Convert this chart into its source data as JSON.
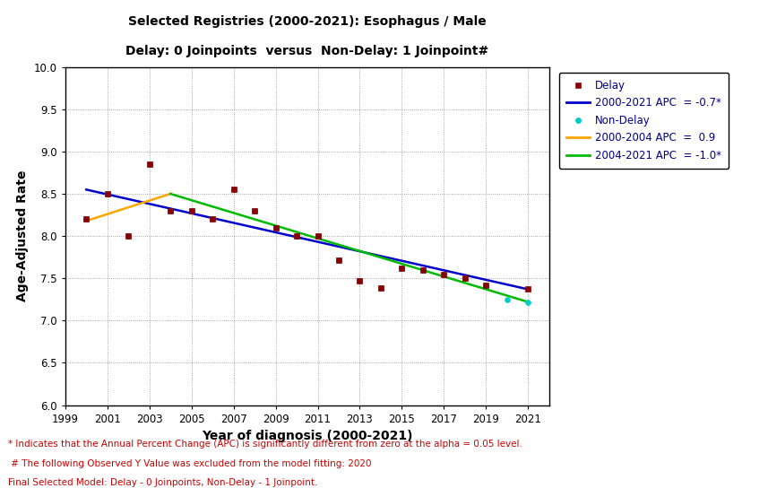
{
  "title_line1": "Selected Registries (2000-2021): Esophagus / Male",
  "title_line2": "Delay: 0 Joinpoints  versus  Non-Delay: 1 Joinpoint#",
  "xlabel": "Year of diagnosis (2000-2021)",
  "ylabel": "Age-Adjusted Rate",
  "xlim": [
    1999,
    2022
  ],
  "ylim": [
    6.0,
    10.0
  ],
  "xticks": [
    1999,
    2001,
    2003,
    2005,
    2007,
    2009,
    2011,
    2013,
    2015,
    2017,
    2019,
    2021
  ],
  "yticks": [
    6.0,
    6.5,
    7.0,
    7.5,
    8.0,
    8.5,
    9.0,
    9.5,
    10.0
  ],
  "delay_points": {
    "x": [
      2000,
      2001,
      2002,
      2003,
      2004,
      2005,
      2006,
      2007,
      2008,
      2009,
      2010,
      2011,
      2012,
      2013,
      2014,
      2015,
      2016,
      2017,
      2018,
      2019,
      2021
    ],
    "y": [
      8.2,
      8.5,
      8.0,
      8.85,
      8.3,
      8.3,
      8.2,
      8.55,
      8.3,
      8.1,
      8.0,
      8.0,
      7.72,
      7.47,
      7.39,
      7.62,
      7.6,
      7.55,
      7.5,
      7.42,
      7.37
    ]
  },
  "nondelay_points": {
    "x": [
      2000,
      2001,
      2002,
      2003,
      2004,
      2005,
      2006,
      2007,
      2008,
      2009,
      2010,
      2011,
      2012,
      2013,
      2014,
      2015,
      2016,
      2017,
      2018,
      2019,
      2020,
      2021
    ],
    "y": [
      8.2,
      8.5,
      8.0,
      8.85,
      8.3,
      8.3,
      8.2,
      8.55,
      8.3,
      8.1,
      8.0,
      8.0,
      7.72,
      7.47,
      7.39,
      7.62,
      7.6,
      7.55,
      7.5,
      7.42,
      7.25,
      7.22
    ]
  },
  "delay_line": {
    "x": [
      2000,
      2021
    ],
    "y": [
      8.55,
      7.37
    ],
    "color": "#0000CC",
    "label": "2000-2021 APC  = -0.7*"
  },
  "nondelay_line1": {
    "x": [
      2000,
      2004
    ],
    "y": [
      8.18,
      8.5
    ],
    "color": "#FFA500",
    "label": "2000-2004 APC  =  0.9"
  },
  "nondelay_line2": {
    "x": [
      2004,
      2021
    ],
    "y": [
      8.5,
      7.22
    ],
    "color": "#00BB00",
    "label": "2004-2021 APC  = -1.0*"
  },
  "delay_color": "#8B0000",
  "nondelay_color": "#00CCCC",
  "legend_text_color": "#00008B",
  "title_color": "#000000",
  "footnote_color": "#CC0000",
  "footnote1": "* Indicates that the Annual Percent Change (APC) is significantly different from zero at the alpha = 0.05 level.",
  "footnote2": " # The following Observed Y Value was excluded from the model fitting: 2020",
  "footnote3": "Final Selected Model: Delay - 0 Joinpoints, Non-Delay - 1 Joinpoint."
}
